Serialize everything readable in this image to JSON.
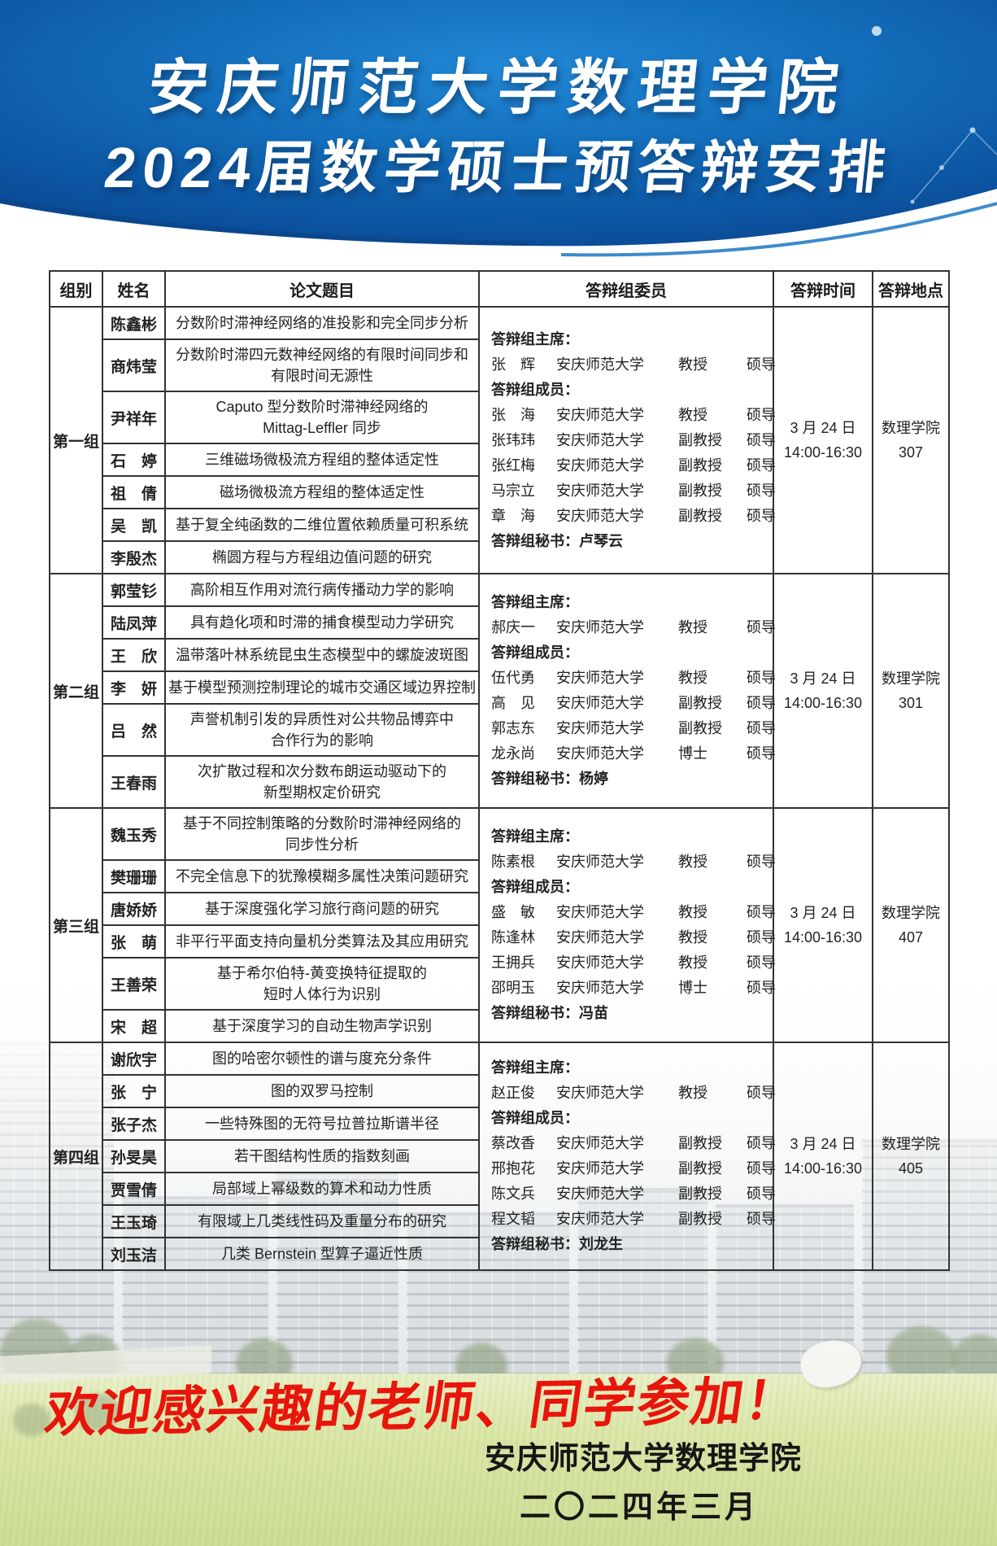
{
  "colors": {
    "header_blue_dark": "#083e85",
    "header_blue_light": "#2288d6",
    "title_white": "#ffffff",
    "welcome_red": "#e8150b",
    "table_border": "#333333"
  },
  "header": {
    "title_line1": "安庆师范大学数理学院",
    "title_line2": "2024届数学硕士预答辩安排"
  },
  "table": {
    "columns": [
      "组别",
      "姓名",
      "论文题目",
      "答辩组委员",
      "答辩时间",
      "答辩地点"
    ],
    "groups": [
      {
        "name": "第一组",
        "students": [
          {
            "name": "陈鑫彬",
            "title": "分数阶时滞神经网络的准投影和完全同步分析",
            "lines": 1
          },
          {
            "name": "商炜莹",
            "title": "分数阶时滞四元数神经网络的有限时间同步和\n有限时间无源性",
            "lines": 2
          },
          {
            "name": "尹祥年",
            "title": "Caputo 型分数阶时滞神经网络的\nMittag-Leffler 同步",
            "lines": 2
          },
          {
            "name": "石　婷",
            "title": "三维磁场微极流方程组的整体适定性",
            "lines": 1
          },
          {
            "name": "祖　倩",
            "title": "磁场微极流方程组的整体适定性",
            "lines": 1
          },
          {
            "name": "吴　凯",
            "title": "基于复全纯函数的二维位置依赖质量可积系统",
            "lines": 1
          },
          {
            "name": "李殷杰",
            "title": "椭圆方程与方程组边值问题的研究",
            "lines": 1
          }
        ],
        "committee": {
          "chair_label": "答辩组主席：",
          "chair": {
            "name": "张　辉",
            "affil": "安庆师范大学",
            "title": "教授",
            "role": "硕导"
          },
          "members_label": "答辩组成员：",
          "members": [
            {
              "name": "张　海",
              "affil": "安庆师范大学",
              "title": "教授",
              "role": "硕导"
            },
            {
              "name": "张玮玮",
              "affil": "安庆师范大学",
              "title": "副教授",
              "role": "硕导"
            },
            {
              "name": "张红梅",
              "affil": "安庆师范大学",
              "title": "副教授",
              "role": "硕导"
            },
            {
              "name": "马宗立",
              "affil": "安庆师范大学",
              "title": "副教授",
              "role": "硕导"
            },
            {
              "name": "章　海",
              "affil": "安庆师范大学",
              "title": "副教授",
              "role": "硕导"
            }
          ],
          "secretary": "答辩组秘书：卢琴云"
        },
        "time": [
          "3 月 24 日",
          "14:00-16:30"
        ],
        "location": [
          "数理学院",
          "307"
        ]
      },
      {
        "name": "第二组",
        "students": [
          {
            "name": "郭莹钐",
            "title": "高阶相互作用对流行病传播动力学的影响",
            "lines": 1
          },
          {
            "name": "陆凤萍",
            "title": "具有趋化项和时滞的捕食模型动力学研究",
            "lines": 1
          },
          {
            "name": "王　欣",
            "title": "温带落叶林系统昆虫生态模型中的螺旋波斑图",
            "lines": 1
          },
          {
            "name": "李　妍",
            "title": "基于模型预测控制理论的城市交通区域边界控制",
            "lines": 1
          },
          {
            "name": "吕　然",
            "title": "声誉机制引发的异质性对公共物品博弈中\n合作行为的影响",
            "lines": 2
          },
          {
            "name": "王春雨",
            "title": "次扩散过程和次分数布朗运动驱动下的\n新型期权定价研究",
            "lines": 2
          }
        ],
        "committee": {
          "chair_label": "答辩组主席：",
          "chair": {
            "name": "郝庆一",
            "affil": "安庆师范大学",
            "title": "教授",
            "role": "硕导"
          },
          "members_label": "答辩组成员：",
          "members": [
            {
              "name": "伍代勇",
              "affil": "安庆师范大学",
              "title": "教授",
              "role": "硕导"
            },
            {
              "name": "高　见",
              "affil": "安庆师范大学",
              "title": "副教授",
              "role": "硕导"
            },
            {
              "name": "郭志东",
              "affil": "安庆师范大学",
              "title": "副教授",
              "role": "硕导"
            },
            {
              "name": "龙永尚",
              "affil": "安庆师范大学",
              "title": "博士",
              "role": "硕导"
            }
          ],
          "secretary": "答辩组秘书：杨婷"
        },
        "time": [
          "3 月 24 日",
          "14:00-16:30"
        ],
        "location": [
          "数理学院",
          "301"
        ]
      },
      {
        "name": "第三组",
        "students": [
          {
            "name": "魏玉秀",
            "title": "基于不同控制策略的分数阶时滞神经网络的\n同步性分析",
            "lines": 2
          },
          {
            "name": "樊珊珊",
            "title": "不完全信息下的犹豫模糊多属性决策问题研究",
            "lines": 1
          },
          {
            "name": "唐娇娇",
            "title": "基于深度强化学习旅行商问题的研究",
            "lines": 1
          },
          {
            "name": "张　萌",
            "title": "非平行平面支持向量机分类算法及其应用研究",
            "lines": 1
          },
          {
            "name": "王善荣",
            "title": "基于希尔伯特-黄变换特征提取的\n短时人体行为识别",
            "lines": 2
          },
          {
            "name": "宋　超",
            "title": "基于深度学习的自动生物声学识别",
            "lines": 1
          }
        ],
        "committee": {
          "chair_label": "答辩组主席：",
          "chair": {
            "name": "陈素根",
            "affil": "安庆师范大学",
            "title": "教授",
            "role": "硕导"
          },
          "members_label": "答辩组成员：",
          "members": [
            {
              "name": "盛　敏",
              "affil": "安庆师范大学",
              "title": "教授",
              "role": "硕导"
            },
            {
              "name": "陈逢林",
              "affil": "安庆师范大学",
              "title": "教授",
              "role": "硕导"
            },
            {
              "name": "王拥兵",
              "affil": "安庆师范大学",
              "title": "教授",
              "role": "硕导"
            },
            {
              "name": "邵明玉",
              "affil": "安庆师范大学",
              "title": "博士",
              "role": "硕导"
            }
          ],
          "secretary": "答辩组秘书：冯苗"
        },
        "time": [
          "3 月 24 日",
          "14:00-16:30"
        ],
        "location": [
          "数理学院",
          "407"
        ]
      },
      {
        "name": "第四组",
        "students": [
          {
            "name": "谢欣宇",
            "title": "图的哈密尔顿性的谱与度充分条件",
            "lines": 1
          },
          {
            "name": "张　宁",
            "title": "图的双罗马控制",
            "lines": 1
          },
          {
            "name": "张子杰",
            "title": "一些特殊图的无符号拉普拉斯谱半径",
            "lines": 1
          },
          {
            "name": "孙旻昊",
            "title": "若干图结构性质的指数刻画",
            "lines": 1
          },
          {
            "name": "贾雪倩",
            "title": "局部域上幂级数的算术和动力性质",
            "lines": 1
          },
          {
            "name": "王玉琦",
            "title": "有限域上几类线性码及重量分布的研究",
            "lines": 1
          },
          {
            "name": "刘玉洁",
            "title": "几类 Bernstein 型算子逼近性质",
            "lines": 1
          }
        ],
        "committee": {
          "chair_label": "答辩组主席：",
          "chair": {
            "name": "赵正俊",
            "affil": "安庆师范大学",
            "title": "教授",
            "role": "硕导"
          },
          "members_label": "答辩组成员：",
          "members": [
            {
              "name": "蔡改香",
              "affil": "安庆师范大学",
              "title": "副教授",
              "role": "硕导"
            },
            {
              "name": "邢抱花",
              "affil": "安庆师范大学",
              "title": "副教授",
              "role": "硕导"
            },
            {
              "name": "陈文兵",
              "affil": "安庆师范大学",
              "title": "副教授",
              "role": "硕导"
            },
            {
              "name": "程文韬",
              "affil": "安庆师范大学",
              "title": "副教授",
              "role": "硕导"
            }
          ],
          "secretary": "答辩组秘书：刘龙生"
        },
        "time": [
          "3 月 24 日",
          "14:00-16:30"
        ],
        "location": [
          "数理学院",
          "405"
        ]
      }
    ]
  },
  "footer": {
    "welcome": "欢迎感兴趣的老师、同学参加！",
    "signature_line1": "安庆师范大学数理学院",
    "signature_line2": "二〇二四年三月"
  }
}
